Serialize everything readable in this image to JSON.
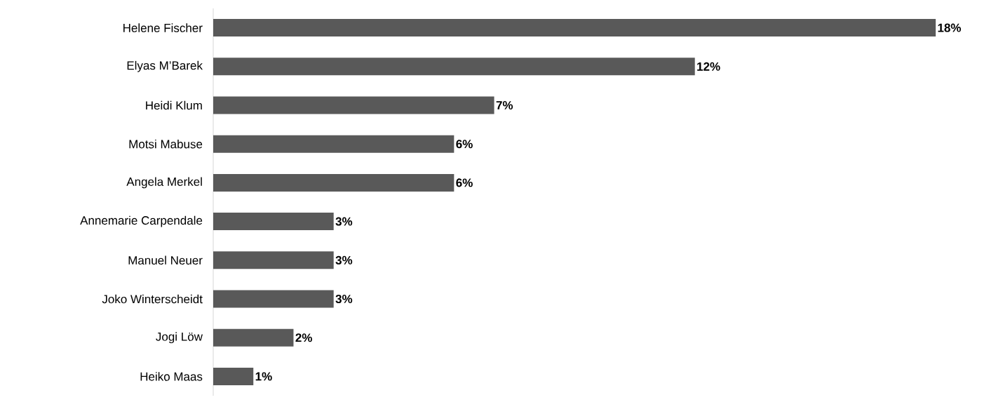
{
  "chart_data": {
    "type": "bar",
    "orientation": "horizontal",
    "categories": [
      "Helene Fischer",
      "Elyas M’Barek",
      "Heidi Klum",
      "Motsi Mabuse",
      "Angela Merkel",
      "Annemarie Carpendale",
      "Manuel Neuer",
      "Joko Winterscheidt",
      "Jogi Löw",
      "Heiko Maas"
    ],
    "values": [
      18,
      12,
      7,
      6,
      6,
      3,
      3,
      3,
      2,
      1
    ],
    "value_labels": [
      "18%",
      "12%",
      "7%",
      "6%",
      "6%",
      "3%",
      "3%",
      "3%",
      "2%",
      "1%"
    ],
    "color": "#595959",
    "xlim": [
      0,
      18
    ],
    "tick_labels": "y"
  }
}
